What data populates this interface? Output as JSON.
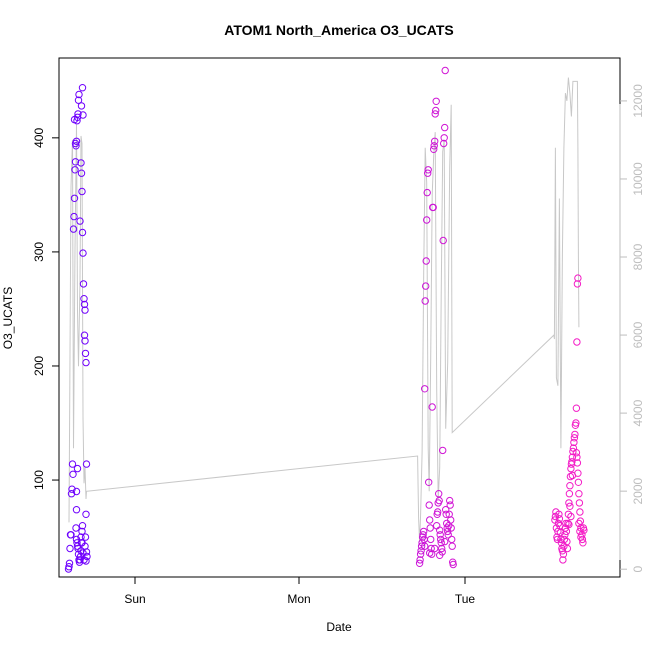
{
  "chart_data": {
    "type": "scatter",
    "title": "ATOM1 North_America O3_UCATS",
    "xlabel": "Date",
    "ylabel": "O3_UCATS",
    "x_tick_labels": [
      "Sun",
      "Mon",
      "Tue"
    ],
    "y_ticks": [
      100,
      200,
      300,
      400
    ],
    "y_right_ticks": [
      0,
      2000,
      4000,
      6000,
      8000,
      10000,
      12000
    ],
    "xlim_hours": [
      -14,
      98
    ],
    "ylim": [
      15,
      470
    ],
    "y_right_lim": [
      -200,
      13100
    ],
    "point_color_start": "#6a00ff",
    "point_color_end": "#ff1fc2",
    "line_color": "#c8c8c8",
    "axis_color": "#000000",
    "right_axis_color": "#bdbdbd",
    "series": [
      {
        "label": "O3_UCATS points",
        "points": [
          [
            -12.1,
            22
          ],
          [
            -12.0,
            24
          ],
          [
            -11.9,
            27
          ],
          [
            -11.8,
            40
          ],
          [
            -11.7,
            52
          ],
          [
            -11.6,
            52
          ],
          [
            -11.5,
            88
          ],
          [
            -11.4,
            92
          ],
          [
            -11.3,
            114
          ],
          [
            -11.2,
            105
          ],
          [
            -11.1,
            320
          ],
          [
            -11.0,
            331
          ],
          [
            -10.9,
            347
          ],
          [
            -10.8,
            372
          ],
          [
            -10.7,
            379
          ],
          [
            -10.6,
            393
          ],
          [
            -10.5,
            397
          ],
          [
            -10.4,
            415
          ],
          [
            -10.3,
            418
          ],
          [
            -10.2,
            421
          ],
          [
            -10.1,
            433
          ],
          [
            -10.0,
            438
          ],
          [
            -10.9,
            416
          ],
          [
            -10.7,
            395
          ],
          [
            -10.6,
            58
          ],
          [
            -10.5,
            48
          ],
          [
            -10.4,
            45
          ],
          [
            -10.3,
            42
          ],
          [
            -10.2,
            40
          ],
          [
            -10.1,
            35
          ],
          [
            -10.0,
            30
          ],
          [
            -9.9,
            28
          ],
          [
            -9.8,
            30
          ],
          [
            -9.7,
            33
          ],
          [
            -9.6,
            38
          ],
          [
            -9.5,
            45
          ],
          [
            -9.4,
            55
          ],
          [
            -9.3,
            60
          ],
          [
            -10.5,
            74
          ],
          [
            -10.3,
            110
          ],
          [
            -10.5,
            90
          ],
          [
            -9.8,
            327
          ],
          [
            -9.6,
            378
          ],
          [
            -9.5,
            369
          ],
          [
            -9.4,
            353
          ],
          [
            -9.3,
            317
          ],
          [
            -9.2,
            299
          ],
          [
            -9.1,
            272
          ],
          [
            -9.0,
            259
          ],
          [
            -8.9,
            254
          ],
          [
            -8.8,
            249
          ],
          [
            -8.9,
            227
          ],
          [
            -8.8,
            222
          ],
          [
            -8.7,
            211
          ],
          [
            -8.6,
            203
          ],
          [
            -8.5,
            114
          ],
          [
            -8.6,
            70
          ],
          [
            -8.7,
            50
          ],
          [
            -8.5,
            37
          ],
          [
            -8.4,
            33
          ],
          [
            -8.6,
            29
          ],
          [
            -8.8,
            42
          ],
          [
            -9.0,
            30
          ],
          [
            -9.2,
            36
          ],
          [
            -9.4,
            45
          ],
          [
            -9.6,
            50
          ],
          [
            -9.5,
            428
          ],
          [
            -9.3,
            444
          ],
          [
            -9.2,
            420
          ],
          [
            58.0,
            27
          ],
          [
            58.1,
            30
          ],
          [
            58.2,
            35
          ],
          [
            58.3,
            38
          ],
          [
            58.4,
            42
          ],
          [
            58.5,
            45
          ],
          [
            58.6,
            50
          ],
          [
            58.7,
            52
          ],
          [
            58.8,
            55
          ],
          [
            58.9,
            48
          ],
          [
            59.0,
            180
          ],
          [
            59.1,
            257
          ],
          [
            59.2,
            270
          ],
          [
            59.3,
            292
          ],
          [
            59.4,
            328
          ],
          [
            59.5,
            352
          ],
          [
            59.6,
            369
          ],
          [
            59.7,
            372
          ],
          [
            59.8,
            98
          ],
          [
            59.9,
            78
          ],
          [
            60.0,
            65
          ],
          [
            60.1,
            58
          ],
          [
            60.2,
            48
          ],
          [
            60.3,
            40
          ],
          [
            60.4,
            35
          ],
          [
            60.5,
            164
          ],
          [
            60.6,
            339
          ],
          [
            60.7,
            339
          ],
          [
            60.8,
            390
          ],
          [
            60.9,
            393
          ],
          [
            61.0,
            397
          ],
          [
            61.1,
            421
          ],
          [
            61.2,
            424
          ],
          [
            61.3,
            432
          ],
          [
            61.4,
            60
          ],
          [
            61.5,
            70
          ],
          [
            61.6,
            72
          ],
          [
            61.7,
            80
          ],
          [
            61.8,
            88
          ],
          [
            61.9,
            82
          ],
          [
            62.0,
            56
          ],
          [
            62.1,
            52
          ],
          [
            62.2,
            48
          ],
          [
            62.3,
            45
          ],
          [
            62.4,
            40
          ],
          [
            62.5,
            37
          ],
          [
            62.6,
            126
          ],
          [
            62.7,
            310
          ],
          [
            62.8,
            395
          ],
          [
            62.9,
            400
          ],
          [
            63.0,
            409
          ],
          [
            63.1,
            459
          ],
          [
            63.2,
            74
          ],
          [
            63.3,
            70
          ],
          [
            63.4,
            62
          ],
          [
            63.5,
            58
          ],
          [
            63.6,
            55
          ],
          [
            63.7,
            52
          ],
          [
            63.8,
            60
          ],
          [
            63.9,
            70
          ],
          [
            64.0,
            82
          ],
          [
            64.1,
            78
          ],
          [
            64.2,
            65
          ],
          [
            64.3,
            58
          ],
          [
            64.4,
            48
          ],
          [
            64.5,
            42
          ],
          [
            64.6,
            28
          ],
          [
            64.7,
            26
          ],
          [
            59.0,
            42
          ],
          [
            60.0,
            36
          ],
          [
            61.0,
            40
          ],
          [
            62.0,
            34
          ],
          [
            63.0,
            46
          ],
          [
            85.0,
            65
          ],
          [
            85.1,
            68
          ],
          [
            85.2,
            72
          ],
          [
            85.3,
            58
          ],
          [
            85.4,
            50
          ],
          [
            85.5,
            48
          ],
          [
            85.6,
            55
          ],
          [
            85.7,
            62
          ],
          [
            85.8,
            70
          ],
          [
            85.9,
            66
          ],
          [
            86.0,
            60
          ],
          [
            86.1,
            54
          ],
          [
            86.2,
            48
          ],
          [
            86.3,
            45
          ],
          [
            86.4,
            40
          ],
          [
            86.5,
            38
          ],
          [
            86.6,
            30
          ],
          [
            86.7,
            35
          ],
          [
            86.8,
            42
          ],
          [
            86.9,
            48
          ],
          [
            87.0,
            52
          ],
          [
            87.1,
            58
          ],
          [
            87.2,
            62
          ],
          [
            87.3,
            55
          ],
          [
            87.4,
            46
          ],
          [
            87.5,
            40
          ],
          [
            87.6,
            62
          ],
          [
            87.7,
            70
          ],
          [
            87.8,
            80
          ],
          [
            87.9,
            88
          ],
          [
            88.0,
            95
          ],
          [
            88.1,
            103
          ],
          [
            88.2,
            110
          ],
          [
            88.3,
            114
          ],
          [
            88.4,
            116
          ],
          [
            88.5,
            120
          ],
          [
            88.6,
            125
          ],
          [
            88.7,
            128
          ],
          [
            88.8,
            133
          ],
          [
            88.9,
            137
          ],
          [
            89.0,
            140
          ],
          [
            89.1,
            148
          ],
          [
            89.2,
            150
          ],
          [
            89.3,
            124
          ],
          [
            89.4,
            120
          ],
          [
            89.5,
            115
          ],
          [
            89.6,
            106
          ],
          [
            89.7,
            98
          ],
          [
            89.8,
            88
          ],
          [
            89.9,
            80
          ],
          [
            90.0,
            72
          ],
          [
            90.1,
            64
          ],
          [
            90.2,
            58
          ],
          [
            89.3,
            163
          ],
          [
            89.4,
            221
          ],
          [
            89.5,
            272
          ],
          [
            89.6,
            277
          ],
          [
            89.8,
            62
          ],
          [
            90.0,
            55
          ],
          [
            90.2,
            50
          ],
          [
            90.4,
            52
          ],
          [
            90.5,
            48
          ],
          [
            90.6,
            45
          ],
          [
            90.7,
            58
          ],
          [
            90.8,
            56
          ],
          [
            88.5,
            104
          ],
          [
            88.0,
            77
          ],
          [
            87.8,
            61
          ],
          [
            88.2,
            68
          ]
        ]
      }
    ],
    "line_series": {
      "label": "secondary axis trace",
      "points": [
        [
          -12.0,
          1200
        ],
        [
          -11.6,
          9800
        ],
        [
          -11.3,
          11000
        ],
        [
          -11.1,
          3100
        ],
        [
          -10.8,
          8200
        ],
        [
          -10.5,
          11400
        ],
        [
          -10.3,
          6600
        ],
        [
          -10.1,
          5200
        ],
        [
          -9.8,
          7400
        ],
        [
          -9.6,
          11100
        ],
        [
          -9.4,
          10900
        ],
        [
          -9.2,
          3900
        ],
        [
          -9.0,
          2200
        ],
        [
          -8.8,
          2600
        ],
        [
          -8.6,
          1800
        ],
        [
          -8.5,
          2000
        ],
        [
          -8.4,
          2000
        ],
        [
          57.6,
          2900
        ],
        [
          57.8,
          1300
        ],
        [
          58.0,
          700
        ],
        [
          58.2,
          1400
        ],
        [
          58.5,
          3000
        ],
        [
          58.8,
          7600
        ],
        [
          59.1,
          10800
        ],
        [
          59.4,
          9900
        ],
        [
          59.7,
          3100
        ],
        [
          59.9,
          2000
        ],
        [
          60.2,
          5400
        ],
        [
          60.5,
          9600
        ],
        [
          60.8,
          10600
        ],
        [
          61.1,
          11200
        ],
        [
          61.4,
          4600
        ],
        [
          61.7,
          1800
        ],
        [
          62.0,
          2600
        ],
        [
          62.3,
          7000
        ],
        [
          62.6,
          10700
        ],
        [
          62.9,
          11000
        ],
        [
          63.2,
          3600
        ],
        [
          63.6,
          5300
        ],
        [
          64.0,
          10300
        ],
        [
          64.3,
          11900
        ],
        [
          64.5,
          3500
        ],
        [
          84.8,
          6000
        ],
        [
          84.9,
          5900
        ],
        [
          85.1,
          10800
        ],
        [
          85.3,
          4900
        ],
        [
          85.6,
          4700
        ],
        [
          85.9,
          9500
        ],
        [
          86.2,
          3100
        ],
        [
          86.5,
          8100
        ],
        [
          86.8,
          10800
        ],
        [
          87.1,
          12200
        ],
        [
          87.4,
          12000
        ],
        [
          87.7,
          12600
        ],
        [
          88.0,
          12200
        ],
        [
          88.3,
          11600
        ],
        [
          88.6,
          12500
        ],
        [
          88.9,
          12500
        ],
        [
          89.2,
          12500
        ],
        [
          89.5,
          12500
        ],
        [
          89.6,
          10800
        ],
        [
          89.7,
          8000
        ],
        [
          89.8,
          6200
        ]
      ]
    }
  }
}
